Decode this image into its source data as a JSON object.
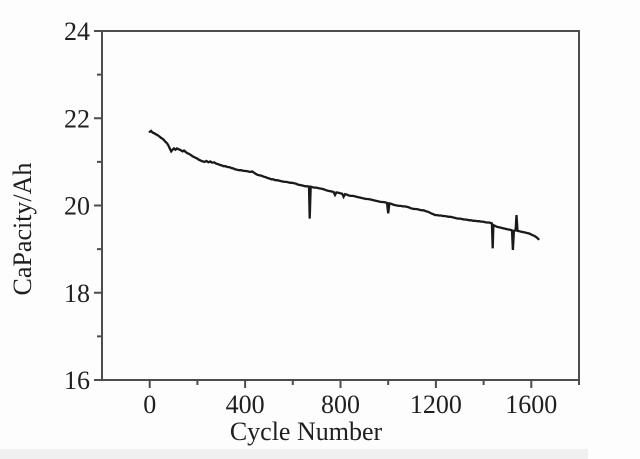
{
  "chart_data": {
    "type": "line",
    "title": "",
    "xlabel": "Cycle Number",
    "ylabel": "CaPacity/Ah",
    "xlim": [
      -200,
      1800
    ],
    "ylim": [
      16,
      24
    ],
    "x_major_ticks": [
      0,
      400,
      800,
      1200,
      1600
    ],
    "x_minor_ticks": [
      200,
      600,
      1000,
      1400,
      1800
    ],
    "y_major_ticks": [
      16,
      18,
      20,
      22,
      24
    ],
    "y_minor_ticks": [
      17,
      19,
      21,
      23
    ],
    "grid": false,
    "legend": false,
    "series": [
      {
        "name": "capacity",
        "color": "#1a1a1a",
        "points": [
          [
            0,
            21.69
          ],
          [
            6,
            21.71
          ],
          [
            12,
            21.67
          ],
          [
            18,
            21.66
          ],
          [
            24,
            21.64
          ],
          [
            30,
            21.62
          ],
          [
            36,
            21.6
          ],
          [
            42,
            21.58
          ],
          [
            48,
            21.55
          ],
          [
            54,
            21.53
          ],
          [
            60,
            21.5
          ],
          [
            66,
            21.46
          ],
          [
            72,
            21.43
          ],
          [
            78,
            21.38
          ],
          [
            84,
            21.31
          ],
          [
            90,
            21.24
          ],
          [
            96,
            21.28
          ],
          [
            102,
            21.31
          ],
          [
            108,
            21.28
          ],
          [
            114,
            21.31
          ],
          [
            120,
            21.29
          ],
          [
            126,
            21.28
          ],
          [
            132,
            21.26
          ],
          [
            138,
            21.24
          ],
          [
            144,
            21.26
          ],
          [
            150,
            21.23
          ],
          [
            158,
            21.2
          ],
          [
            166,
            21.18
          ],
          [
            174,
            21.15
          ],
          [
            182,
            21.12
          ],
          [
            190,
            21.1
          ],
          [
            198,
            21.08
          ],
          [
            206,
            21.05
          ],
          [
            214,
            21.03
          ],
          [
            222,
            21.01
          ],
          [
            230,
            21.0
          ],
          [
            238,
            21.02
          ],
          [
            246,
            20.99
          ],
          [
            254,
            21.01
          ],
          [
            262,
            20.98
          ],
          [
            270,
            20.99
          ],
          [
            278,
            20.96
          ],
          [
            286,
            20.95
          ],
          [
            294,
            20.93
          ],
          [
            302,
            20.92
          ],
          [
            310,
            20.9
          ],
          [
            318,
            20.9
          ],
          [
            326,
            20.88
          ],
          [
            334,
            20.88
          ],
          [
            342,
            20.86
          ],
          [
            350,
            20.85
          ],
          [
            358,
            20.83
          ],
          [
            366,
            20.82
          ],
          [
            374,
            20.81
          ],
          [
            382,
            20.81
          ],
          [
            390,
            20.8
          ],
          [
            398,
            20.79
          ],
          [
            406,
            20.79
          ],
          [
            414,
            20.78
          ],
          [
            422,
            20.77
          ],
          [
            430,
            20.78
          ],
          [
            438,
            20.75
          ],
          [
            446,
            20.72
          ],
          [
            454,
            20.7
          ],
          [
            462,
            20.69
          ],
          [
            470,
            20.68
          ],
          [
            478,
            20.66
          ],
          [
            486,
            20.65
          ],
          [
            494,
            20.63
          ],
          [
            502,
            20.62
          ],
          [
            510,
            20.6
          ],
          [
            518,
            20.6
          ],
          [
            526,
            20.58
          ],
          [
            534,
            20.58
          ],
          [
            542,
            20.57
          ],
          [
            550,
            20.56
          ],
          [
            558,
            20.55
          ],
          [
            566,
            20.54
          ],
          [
            574,
            20.54
          ],
          [
            582,
            20.53
          ],
          [
            590,
            20.52
          ],
          [
            598,
            20.52
          ],
          [
            606,
            20.51
          ],
          [
            614,
            20.5
          ],
          [
            622,
            20.48
          ],
          [
            630,
            20.47
          ],
          [
            638,
            20.46
          ],
          [
            646,
            20.45
          ],
          [
            654,
            20.44
          ],
          [
            662,
            20.44
          ],
          [
            668,
            20.43
          ],
          [
            671,
            19.7
          ],
          [
            675,
            20.43
          ],
          [
            683,
            20.42
          ],
          [
            691,
            20.41
          ],
          [
            699,
            20.41
          ],
          [
            707,
            20.4
          ],
          [
            715,
            20.39
          ],
          [
            723,
            20.38
          ],
          [
            731,
            20.37
          ],
          [
            739,
            20.35
          ],
          [
            747,
            20.34
          ],
          [
            755,
            20.33
          ],
          [
            763,
            20.32
          ],
          [
            771,
            20.31
          ],
          [
            777,
            20.24
          ],
          [
            783,
            20.3
          ],
          [
            791,
            20.29
          ],
          [
            799,
            20.28
          ],
          [
            807,
            20.27
          ],
          [
            813,
            20.2
          ],
          [
            819,
            20.26
          ],
          [
            827,
            20.25
          ],
          [
            835,
            20.23
          ],
          [
            843,
            20.22
          ],
          [
            851,
            20.22
          ],
          [
            859,
            20.21
          ],
          [
            867,
            20.2
          ],
          [
            875,
            20.19
          ],
          [
            883,
            20.18
          ],
          [
            891,
            20.17
          ],
          [
            899,
            20.16
          ],
          [
            907,
            20.15
          ],
          [
            915,
            20.15
          ],
          [
            923,
            20.14
          ],
          [
            931,
            20.13
          ],
          [
            939,
            20.12
          ],
          [
            947,
            20.11
          ],
          [
            955,
            20.1
          ],
          [
            963,
            20.09
          ],
          [
            971,
            20.08
          ],
          [
            979,
            20.08
          ],
          [
            987,
            20.07
          ],
          [
            995,
            20.06
          ],
          [
            1000,
            19.82
          ],
          [
            1005,
            20.05
          ],
          [
            1013,
            20.04
          ],
          [
            1021,
            20.02
          ],
          [
            1029,
            20.01
          ],
          [
            1037,
            20.0
          ],
          [
            1045,
            19.99
          ],
          [
            1053,
            19.99
          ],
          [
            1061,
            19.98
          ],
          [
            1069,
            19.98
          ],
          [
            1077,
            19.97
          ],
          [
            1085,
            19.96
          ],
          [
            1093,
            19.94
          ],
          [
            1101,
            19.93
          ],
          [
            1109,
            19.92
          ],
          [
            1117,
            19.92
          ],
          [
            1125,
            19.91
          ],
          [
            1133,
            19.9
          ],
          [
            1141,
            19.89
          ],
          [
            1149,
            19.89
          ],
          [
            1157,
            19.87
          ],
          [
            1165,
            19.86
          ],
          [
            1173,
            19.84
          ],
          [
            1181,
            19.82
          ],
          [
            1189,
            19.8
          ],
          [
            1197,
            19.78
          ],
          [
            1205,
            19.78
          ],
          [
            1213,
            19.77
          ],
          [
            1221,
            19.77
          ],
          [
            1229,
            19.76
          ],
          [
            1237,
            19.76
          ],
          [
            1245,
            19.75
          ],
          [
            1253,
            19.74
          ],
          [
            1261,
            19.74
          ],
          [
            1269,
            19.73
          ],
          [
            1277,
            19.72
          ],
          [
            1285,
            19.71
          ],
          [
            1293,
            19.7
          ],
          [
            1301,
            19.7
          ],
          [
            1309,
            19.69
          ],
          [
            1317,
            19.68
          ],
          [
            1325,
            19.68
          ],
          [
            1333,
            19.67
          ],
          [
            1341,
            19.66
          ],
          [
            1349,
            19.66
          ],
          [
            1357,
            19.65
          ],
          [
            1365,
            19.65
          ],
          [
            1373,
            19.64
          ],
          [
            1381,
            19.64
          ],
          [
            1389,
            19.63
          ],
          [
            1397,
            19.63
          ],
          [
            1405,
            19.62
          ],
          [
            1413,
            19.61
          ],
          [
            1421,
            19.61
          ],
          [
            1429,
            19.6
          ],
          [
            1435,
            19.59
          ],
          [
            1438,
            19.02
          ],
          [
            1441,
            19.55
          ],
          [
            1449,
            19.53
          ],
          [
            1457,
            19.51
          ],
          [
            1465,
            19.5
          ],
          [
            1473,
            19.49
          ],
          [
            1481,
            19.48
          ],
          [
            1489,
            19.47
          ],
          [
            1497,
            19.46
          ],
          [
            1505,
            19.45
          ],
          [
            1513,
            19.44
          ],
          [
            1519,
            19.43
          ],
          [
            1523,
            18.98
          ],
          [
            1527,
            19.42
          ],
          [
            1534,
            19.43
          ],
          [
            1538,
            19.78
          ],
          [
            1542,
            19.42
          ],
          [
            1550,
            19.41
          ],
          [
            1558,
            19.4
          ],
          [
            1566,
            19.39
          ],
          [
            1574,
            19.38
          ],
          [
            1582,
            19.37
          ],
          [
            1590,
            19.36
          ],
          [
            1598,
            19.34
          ],
          [
            1606,
            19.32
          ],
          [
            1614,
            19.3
          ],
          [
            1622,
            19.27
          ],
          [
            1630,
            19.23
          ]
        ]
      }
    ]
  },
  "colors": {
    "line": "#1a1a1a",
    "frame": "#4d4d4d",
    "text": "#1f1f1f",
    "background": "#fdfdfd",
    "scan_strip": "#f0f0f0"
  }
}
